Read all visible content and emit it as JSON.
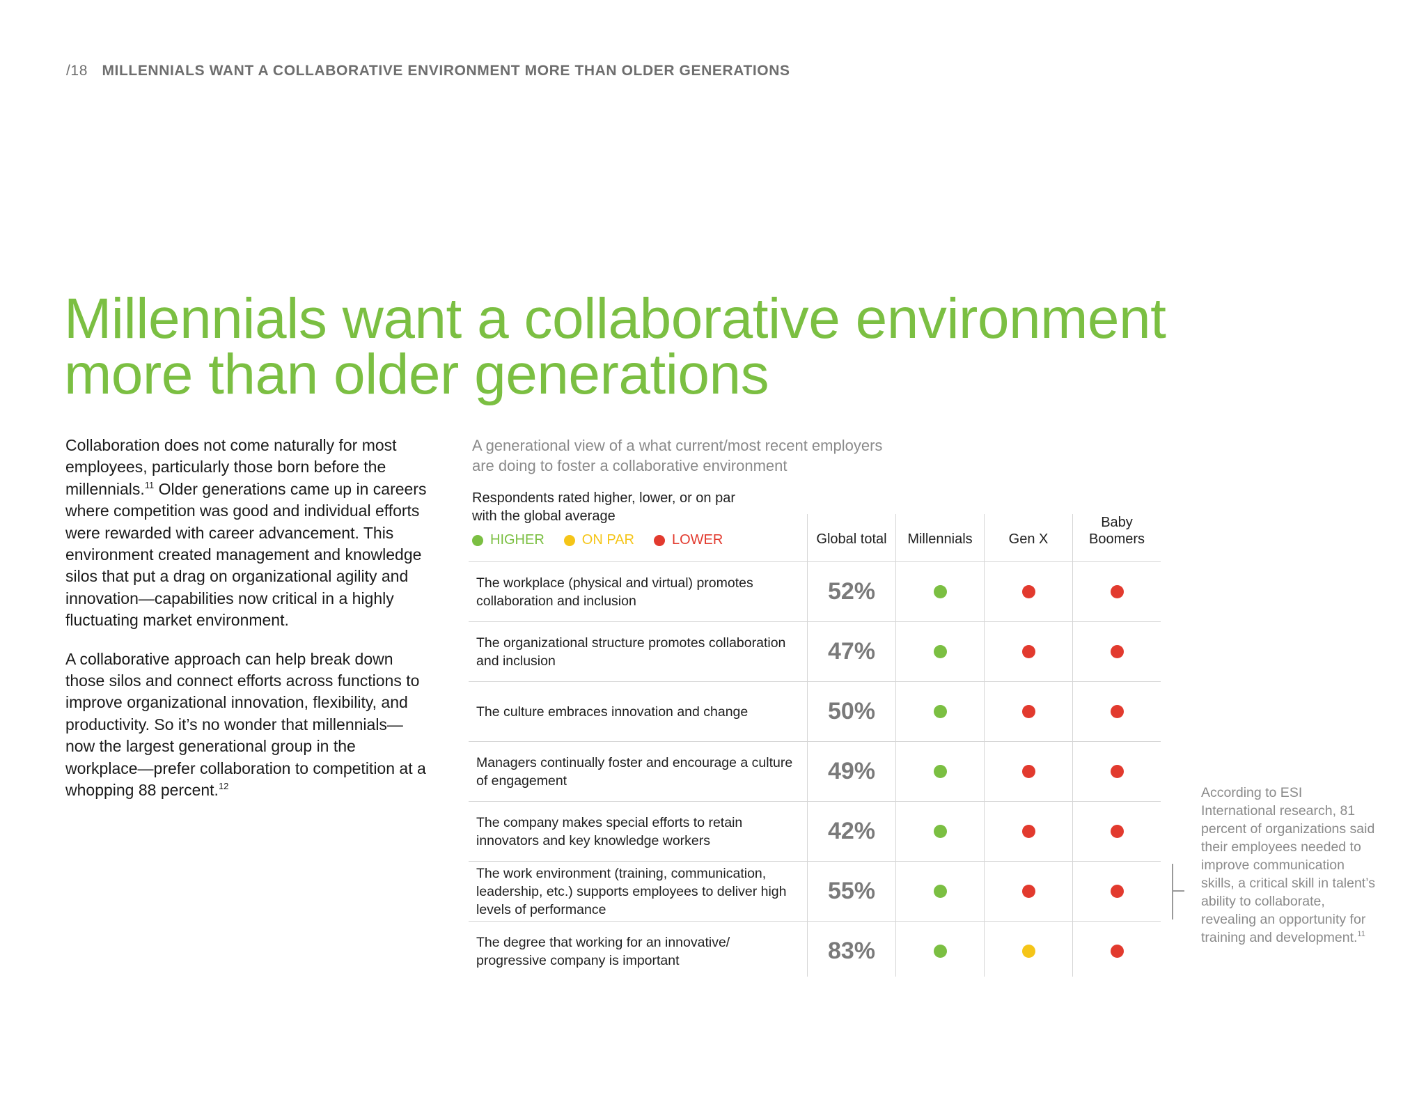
{
  "header": {
    "page_number": "/18",
    "title": "MILLENNIALS WANT A COLLABORATIVE ENVIRONMENT MORE THAN OLDER GENERATIONS"
  },
  "title": {
    "line1": "Millennials want a collaborative environment",
    "line2": "more than older generations"
  },
  "body": {
    "p1_a": "Collaboration does not come naturally for most employees, particularly those born before the millennials.",
    "p1_sup": "11",
    "p1_b": " Older generations came up in careers where competition was good and individual efforts were rewarded with career advancement. This environment created management and knowledge silos that put a drag on organizational agility and innovation—capabilities now critical in a highly fluctuating market environment.",
    "p2_a": " A collaborative approach can help break down those silos and connect efforts across functions to improve organizational innovation, flexibility, and productivity. So it’s no wonder that millennials—now the largest generational group in the workplace—prefer collaboration to competition at a whopping 88 percent.",
    "p2_sup": "12"
  },
  "table": {
    "subtitle_line1": "A generational view of a what current/most recent employers",
    "subtitle_line2": "are doing to foster a collaborative environment",
    "rated_line1": "Respondents rated higher, lower, or on par",
    "rated_line2": "with the global average",
    "legend": [
      {
        "label": "HIGHER",
        "color": "#7bbf42"
      },
      {
        "label": "ON PAR",
        "color": "#f5c518"
      },
      {
        "label": "LOWER",
        "color": "#e23a2e"
      }
    ],
    "columns": {
      "global": "Global total",
      "millennials": "Millennials",
      "genx": "Gen X",
      "boomers_line1": "Baby",
      "boomers_line2": "Boomers"
    },
    "rows": [
      {
        "label": "The workplace (physical and virtual) promotes collaboration and inclusion",
        "global": "52%",
        "millennials": "higher",
        "genx": "lower",
        "boomers": "lower"
      },
      {
        "label": "The organizational structure promotes collaboration and inclusion",
        "global": "47%",
        "millennials": "higher",
        "genx": "lower",
        "boomers": "lower"
      },
      {
        "label": "The culture embraces innovation and change",
        "global": "50%",
        "millennials": "higher",
        "genx": "lower",
        "boomers": "lower"
      },
      {
        "label": "Managers continually foster and encourage a culture of engagement",
        "global": "49%",
        "millennials": "higher",
        "genx": "lower",
        "boomers": "lower"
      },
      {
        "label": "The company makes special efforts to retain innovators and key knowledge workers",
        "global": "42%",
        "millennials": "higher",
        "genx": "lower",
        "boomers": "lower"
      },
      {
        "label": "The work environment (training, communication, leadership, etc.) supports employees to deliver high levels of performance",
        "global": "55%",
        "millennials": "higher",
        "genx": "lower",
        "boomers": "lower"
      },
      {
        "label": "The degree that working for an innovative/ progressive company is important",
        "global": "83%",
        "millennials": "higher",
        "genx": "on par",
        "boomers": "lower"
      }
    ],
    "status_colors": {
      "higher": "#7bbf42",
      "on par": "#f5c518",
      "lower": "#e23a2e"
    }
  },
  "aside": {
    "text": "According to ESI International research, 81 percent of organizations said their employees needed to improve communication skills, a critical skill in talent’s ability to collaborate, revealing an opportunity for training and development.",
    "sup": "11"
  }
}
